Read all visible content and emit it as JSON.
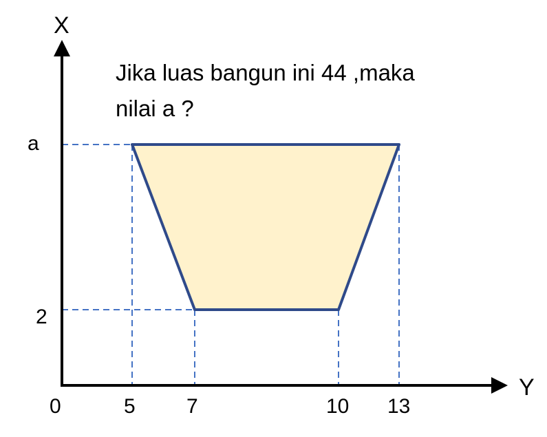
{
  "question": {
    "line1": "Jika luas bangun ini 44 ,maka",
    "line2": "nilai a ?"
  },
  "axes": {
    "vertical_label": "X",
    "horizontal_label": "Y",
    "origin_label": "0"
  },
  "ticks": {
    "horizontal": [
      "5",
      "7",
      "10",
      "13"
    ],
    "vertical": [
      "a",
      "2"
    ]
  },
  "trapezoid": {
    "top_edge": {
      "from": 5,
      "to": 13,
      "at": "a"
    },
    "bottom_edge": {
      "from": 7,
      "to": 10,
      "at": 2
    }
  },
  "colors": {
    "fill": "#fff2cc",
    "outline": "#2f4a8a",
    "guide": "#4472c4",
    "axis": "#000000"
  }
}
